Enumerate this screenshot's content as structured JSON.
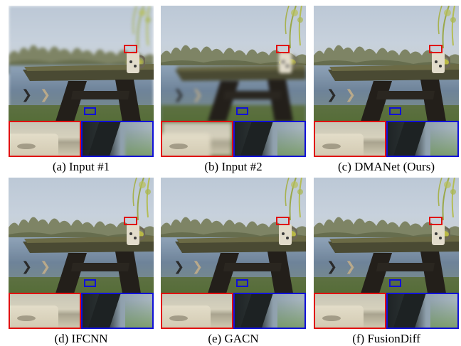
{
  "panels": [
    {
      "caption": "(a) Input #1",
      "focus": "near"
    },
    {
      "caption": "(b) Input #2",
      "focus": "far"
    },
    {
      "caption": "(c) DMANet (Ours)",
      "focus": "all"
    },
    {
      "caption": "(d) IFCNN",
      "focus": "all"
    },
    {
      "caption": "(e) GACN",
      "focus": "all"
    },
    {
      "caption": "(f) FusionDiff",
      "focus": "all"
    }
  ],
  "colors": {
    "red_roi": "#e01010",
    "blue_roi": "#1010d8"
  }
}
